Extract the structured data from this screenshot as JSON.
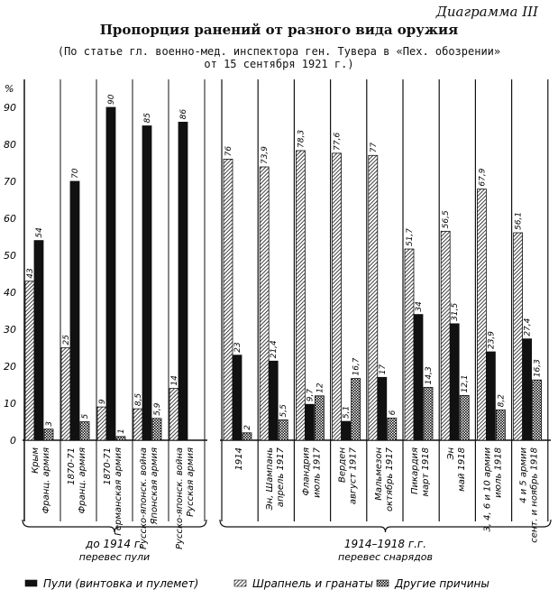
{
  "header": {
    "diagram_no": "Диаграмма III",
    "title": "Пропорция ранений от разного вида оружия",
    "subtitle_line1": "(По статье гл. военно-мед. инспектора ген. Тувера в «Пех. обозрении»",
    "subtitle_line2": "от 15 сентября 1921 г.)"
  },
  "chart_data": {
    "type": "bar",
    "title": "Пропорция ранений от разного вида оружия",
    "ylabel": "%",
    "ylim": [
      0,
      90
    ],
    "yticks": [
      "0",
      "10",
      "20",
      "30",
      "40",
      "50",
      "60",
      "70",
      "80",
      "90"
    ],
    "series": [
      {
        "name": "Шрапнель и гранаты",
        "key": "shrapnel",
        "values": [
          43,
          25,
          9,
          8.5,
          14,
          76,
          73.9,
          78.3,
          77.6,
          77,
          51.7,
          56.5,
          67.9,
          56.1
        ]
      },
      {
        "name": "Пули (винтовка и пулемет)",
        "key": "bullets",
        "values": [
          54,
          70,
          90,
          85,
          86,
          23,
          21.4,
          9.7,
          5.1,
          17,
          34,
          31.5,
          23.9,
          27.4
        ]
      },
      {
        "name": "Другие причины",
        "key": "other",
        "values": [
          3,
          5,
          1,
          5.9,
          null,
          2,
          5.5,
          12,
          16.7,
          6,
          14.3,
          12.1,
          8.2,
          16.3
        ]
      }
    ],
    "categories": [
      [
        "Крым",
        "Франц. армия"
      ],
      [
        "1870-71",
        "Франц. армия"
      ],
      [
        "1870-71",
        "Германская армия"
      ],
      [
        "Русско-японск. война",
        "Японская армия"
      ],
      [
        "Русско-японск. война",
        "Русская армия"
      ],
      [
        "1914"
      ],
      [
        "Эн, Шампань",
        "апрель 1917"
      ],
      [
        "Фландрия",
        "июль 1917"
      ],
      [
        "Верден",
        "август 1917"
      ],
      [
        "Мальмезон",
        "октябрь 1917"
      ],
      [
        "Пикардия",
        "март 1918"
      ],
      [
        "Эн",
        "май 1918"
      ],
      [
        "3, 4, 6 и 10 армии",
        "июль 1918"
      ],
      [
        "4 и 5 армии",
        "сент. и ноябрь 1918"
      ]
    ],
    "groups": [
      {
        "label": "до 1914 г.",
        "note": "перевес пули",
        "count": 5
      },
      {
        "label": "1914–1918 г.г.",
        "note": "перевес снарядов",
        "count": 9
      }
    ],
    "legend": [
      "Пули (винтовка и пулемет)",
      "Шрапнель и гранаты",
      "Другие причины"
    ],
    "legend_position": "bottom"
  }
}
